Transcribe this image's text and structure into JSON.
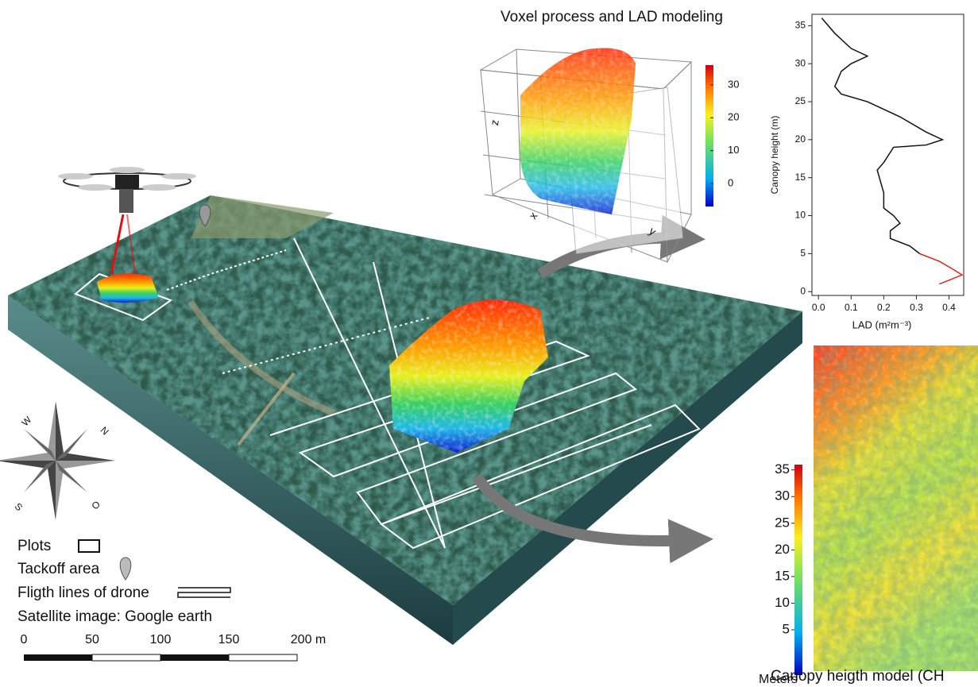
{
  "chart_data": {
    "type": "line",
    "x_label": "LAD (m²m⁻³)",
    "y_label": "Canopy height (m)",
    "xlim": [
      -0.02,
      0.445
    ],
    "ylim": [
      -0.5,
      36.5
    ],
    "xticks": [
      {
        "value": 0,
        "label": "0.0"
      },
      0.1,
      0.2,
      0.3,
      0.4
    ],
    "yticks": [
      0,
      5,
      10,
      15,
      20,
      25,
      30,
      35
    ],
    "series": [
      {
        "color": "#111111",
        "x": [
          0.01,
          0.05,
          0.1,
          0.15,
          0.1,
          0.07,
          0.05,
          0.07,
          0.15,
          0.25,
          0.33,
          0.38,
          0.33,
          0.23,
          0.2,
          0.18,
          0.2,
          0.2,
          0.23,
          0.25,
          0.22,
          0.22,
          0.28,
          0.31
        ],
        "values": [
          36,
          34,
          32,
          31,
          30,
          29,
          27,
          26,
          25,
          23,
          21,
          20,
          19.3,
          19,
          17,
          16,
          13,
          11,
          10,
          9,
          8,
          7,
          6,
          5
        ]
      },
      {
        "color": "#e0231c",
        "x": [
          0.31,
          0.37,
          0.41,
          0.44,
          0.4,
          0.37
        ],
        "values": [
          5,
          4,
          3,
          2.2,
          1.5,
          1
        ]
      }
    ]
  },
  "voxel": {
    "title": "Voxel process and LAD modeling",
    "axis_x": "x",
    "axis_y": "y",
    "axis_z": "z",
    "colorbar_lim": [
      -7,
      36
    ],
    "colorbar_ticks": [
      0,
      10,
      20,
      30
    ]
  },
  "chm": {
    "caption": "Canopy heigth model (CH",
    "unit": "Meters",
    "colorbar_lim": [
      -3.5,
      36
    ],
    "colorbar_ticks": [
      5,
      10,
      15,
      20,
      25,
      30,
      35
    ]
  },
  "compass": {
    "w": "W",
    "n": "N",
    "s": "S",
    "o": "O"
  },
  "legend": {
    "plots": "Plots",
    "takeoff": "Tackoff area",
    "flight": "Fligth lines of drone",
    "source": "Satellite image: Google earth"
  },
  "scale_bar": {
    "labels": [
      "0",
      "50",
      "100",
      "150",
      "200 m"
    ]
  }
}
